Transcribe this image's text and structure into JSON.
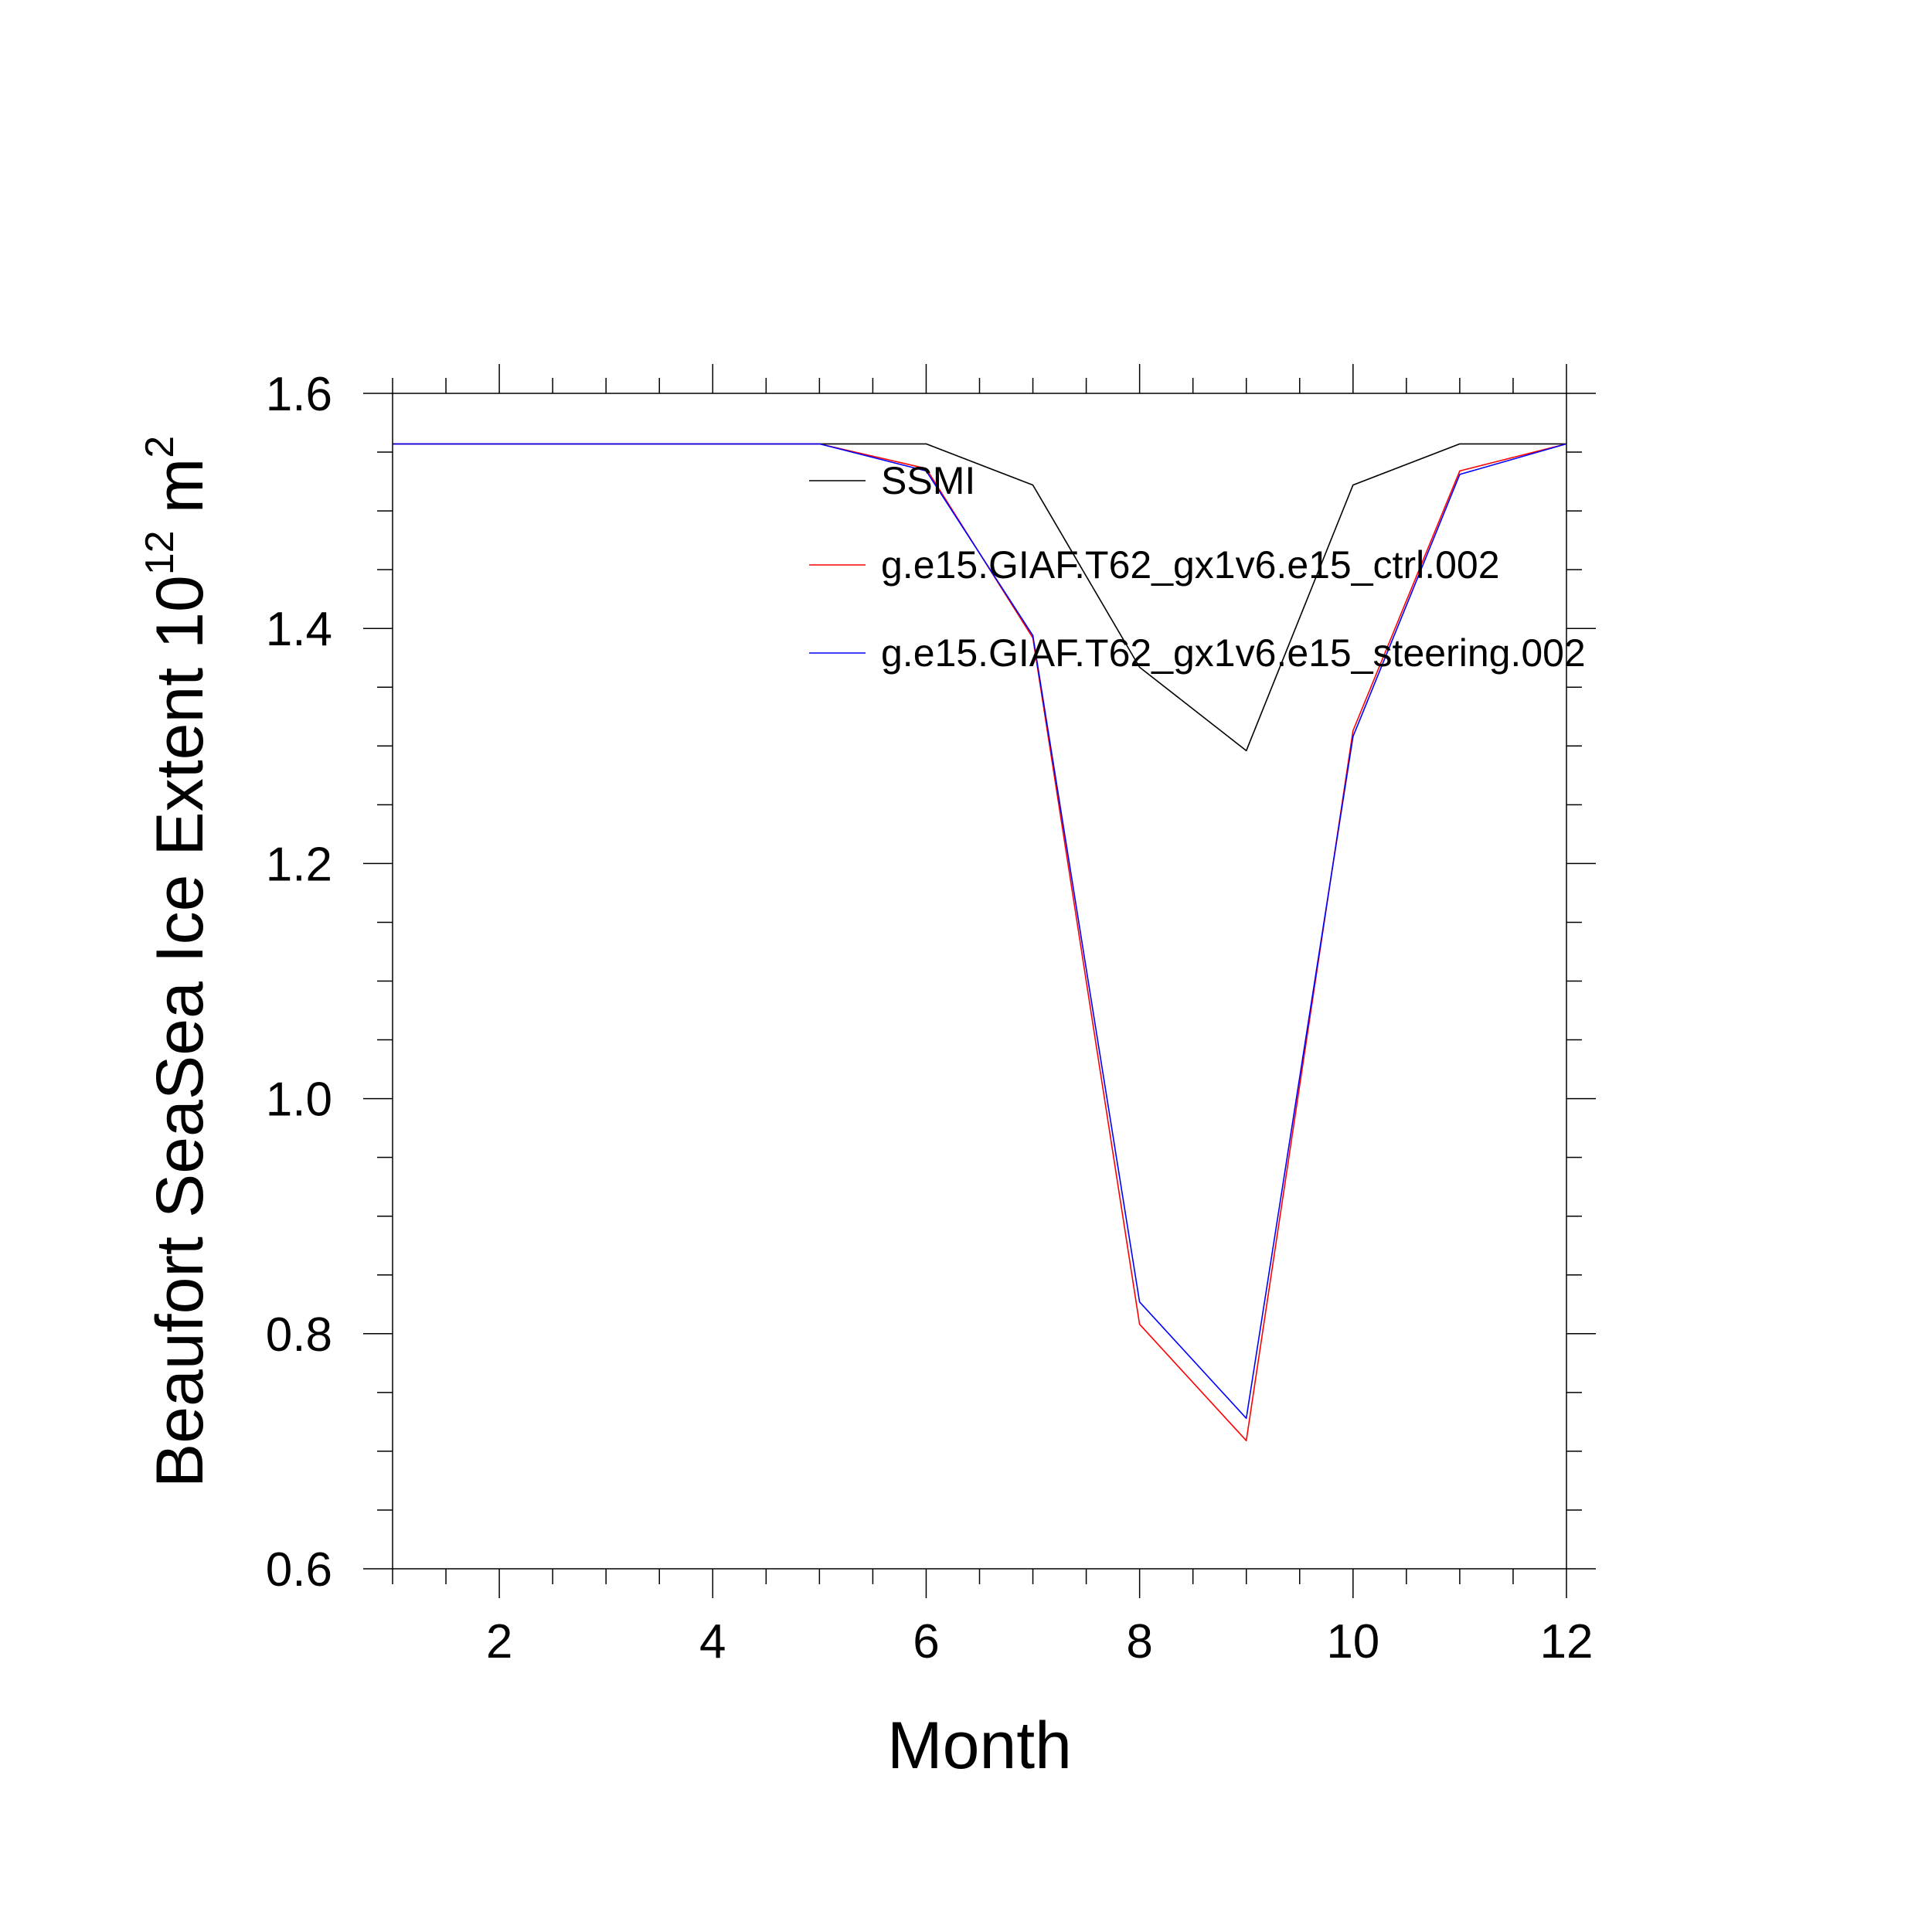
{
  "chart_data": {
    "type": "line",
    "title": "",
    "xlabel": "Month",
    "ylabel": {
      "text": "Beaufort SeaSea Ice Extent 10",
      "superscript_exponent": "12",
      "unit": "m",
      "unit_superscript": "2"
    },
    "xlim": [
      1,
      12
    ],
    "ylim": [
      0.6,
      1.6
    ],
    "x_ticks": [
      2,
      4,
      6,
      8,
      10,
      12
    ],
    "x_tick_labels": [
      "2",
      "4",
      "6",
      "8",
      "10",
      "12"
    ],
    "y_ticks": [
      0.6,
      0.8,
      1.0,
      1.2,
      1.4,
      1.6
    ],
    "y_tick_labels": [
      "0.6",
      "0.8",
      "1.0",
      "1.2",
      "1.4",
      "1.6"
    ],
    "grid": false,
    "legend_placement": "top-center",
    "x": [
      1,
      2,
      3,
      4,
      5,
      6,
      7,
      8,
      9,
      10,
      11,
      12
    ],
    "series": [
      {
        "name": "SSMI",
        "color": "#000000",
        "values": [
          1.557,
          1.557,
          1.557,
          1.557,
          1.557,
          1.557,
          1.522,
          1.367,
          1.296,
          1.522,
          1.557,
          1.557
        ]
      },
      {
        "name": "g.e15.GIAF.T62_gx1v6.e15_ctrl.002",
        "color": "#ff0000",
        "values": [
          1.557,
          1.557,
          1.557,
          1.557,
          1.557,
          1.536,
          1.392,
          0.808,
          0.709,
          1.313,
          1.534,
          1.557
        ]
      },
      {
        "name": "g.e15.GIAF.T62_gx1v6.e15_steering.002",
        "color": "#0000ff",
        "values": [
          1.557,
          1.557,
          1.557,
          1.557,
          1.557,
          1.534,
          1.394,
          0.827,
          0.728,
          1.308,
          1.531,
          1.557
        ]
      }
    ]
  }
}
